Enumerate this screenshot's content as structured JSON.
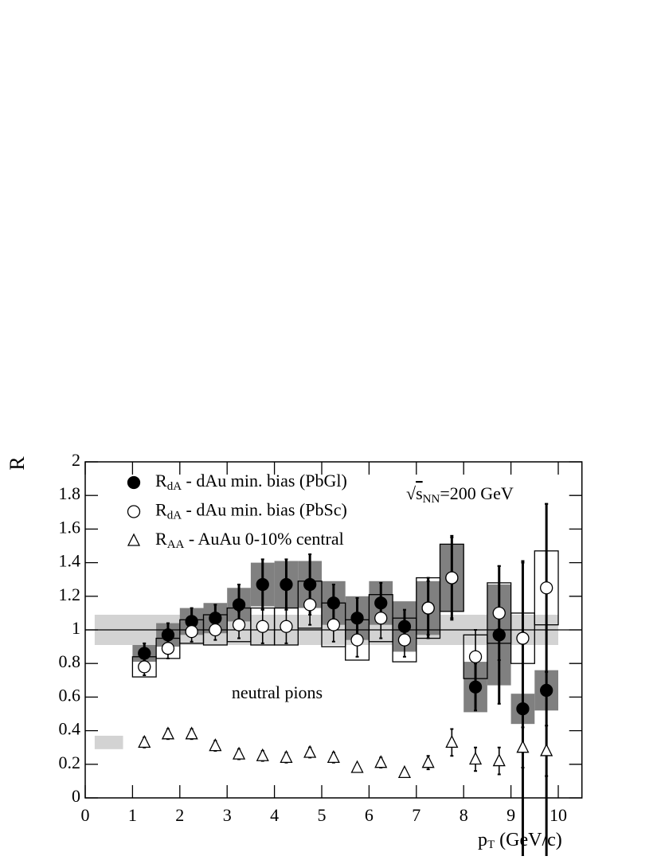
{
  "chart_data": {
    "type": "errorbar",
    "y_label": "R",
    "x_label": {
      "main": "p",
      "sub": "T",
      "rest": " (GeV/c)"
    },
    "energy_label": {
      "main": "√",
      "over": "s",
      "sub": "NN",
      "rest": "=200 GeV"
    },
    "annotation": "neutral pions",
    "xlim": [
      0,
      10.5
    ],
    "ylim": [
      0,
      2
    ],
    "xticks": [
      0,
      1,
      2,
      3,
      4,
      5,
      6,
      7,
      8,
      9,
      10
    ],
    "yticks": [
      0,
      0.2,
      0.4,
      0.6,
      0.8,
      1,
      1.2,
      1.4,
      1.6,
      1.8,
      2
    ],
    "reference_line": 1,
    "bands": [
      {
        "color": "#d3d3d3",
        "xlim": [
          0.2,
          10
        ],
        "ylim": [
          0.91,
          1.09
        ]
      },
      {
        "color": "#d3d3d3",
        "xlim": [
          0.2,
          0.8
        ],
        "ylim": [
          0.29,
          0.37
        ]
      }
    ],
    "x": [
      1.25,
      1.75,
      2.25,
      2.75,
      3.25,
      3.75,
      4.25,
      4.75,
      5.25,
      5.75,
      6.25,
      6.75,
      7.25,
      7.75,
      8.25,
      8.75,
      9.25,
      9.75
    ],
    "series": [
      {
        "name": {
          "main": "R",
          "sub": "dA",
          "rest": " - dAu min. bias (PbGl)"
        },
        "marker": "filled-circle",
        "sys_style": "filled",
        "color": "#808080",
        "values": [
          0.86,
          0.97,
          1.05,
          1.07,
          1.15,
          1.27,
          1.27,
          1.27,
          1.16,
          1.07,
          1.16,
          1.02,
          1.13,
          1.31,
          0.66,
          0.97,
          0.53,
          0.64
        ],
        "errors": [
          0.06,
          0.07,
          0.08,
          0.08,
          0.12,
          0.15,
          0.15,
          0.18,
          0.11,
          0.12,
          0.12,
          0.1,
          0.18,
          0.25,
          0.14,
          0.41,
          0.88,
          1.11
        ],
        "sys": [
          0.05,
          0.07,
          0.08,
          0.09,
          0.1,
          0.13,
          0.14,
          0.14,
          0.13,
          0.13,
          0.13,
          0.15,
          0.16,
          0.2,
          0.15,
          0.3,
          0.09,
          0.12
        ]
      },
      {
        "name": {
          "main": "R",
          "sub": "dA",
          "rest": " - dAu min. bias (PbSc)"
        },
        "marker": "open-circle",
        "sys_style": "open",
        "color": "#000000",
        "values": [
          0.78,
          0.89,
          0.99,
          1.0,
          1.03,
          1.02,
          1.02,
          1.15,
          1.03,
          0.94,
          1.07,
          0.94,
          1.13,
          1.31,
          0.84,
          1.1,
          0.95,
          1.25
        ],
        "errors": [
          0.05,
          0.06,
          0.06,
          0.06,
          0.08,
          0.1,
          0.1,
          0.12,
          0.1,
          0.1,
          0.12,
          0.1,
          0.16,
          0.24,
          0.16,
          0.28,
          0.45,
          0.5
        ],
        "sys": [
          0.06,
          0.06,
          0.07,
          0.09,
          0.1,
          0.11,
          0.11,
          0.14,
          0.13,
          0.12,
          0.14,
          0.13,
          0.18,
          0.2,
          0.13,
          0.18,
          0.15,
          0.22
        ]
      },
      {
        "name": {
          "main": "R",
          "sub": "AA",
          "rest": " - AuAu 0-10% central"
        },
        "marker": "open-triangle",
        "sys_style": "none",
        "color": "#000000",
        "values": [
          0.33,
          0.38,
          0.38,
          0.31,
          0.26,
          0.25,
          0.24,
          0.27,
          0.24,
          0.18,
          0.21,
          0.15,
          0.21,
          0.33,
          0.23,
          0.22,
          0.3,
          0.28
        ],
        "errors": [
          0.03,
          0.03,
          0.03,
          0.03,
          0.03,
          0.03,
          0.03,
          0.03,
          0.03,
          0.02,
          0.03,
          0.02,
          0.04,
          0.08,
          0.07,
          0.08,
          0.12,
          0.15
        ],
        "sys": [
          null,
          null,
          null,
          null,
          null,
          null,
          null,
          null,
          null,
          null,
          null,
          null,
          null,
          null,
          null,
          null,
          null,
          null
        ]
      }
    ]
  }
}
